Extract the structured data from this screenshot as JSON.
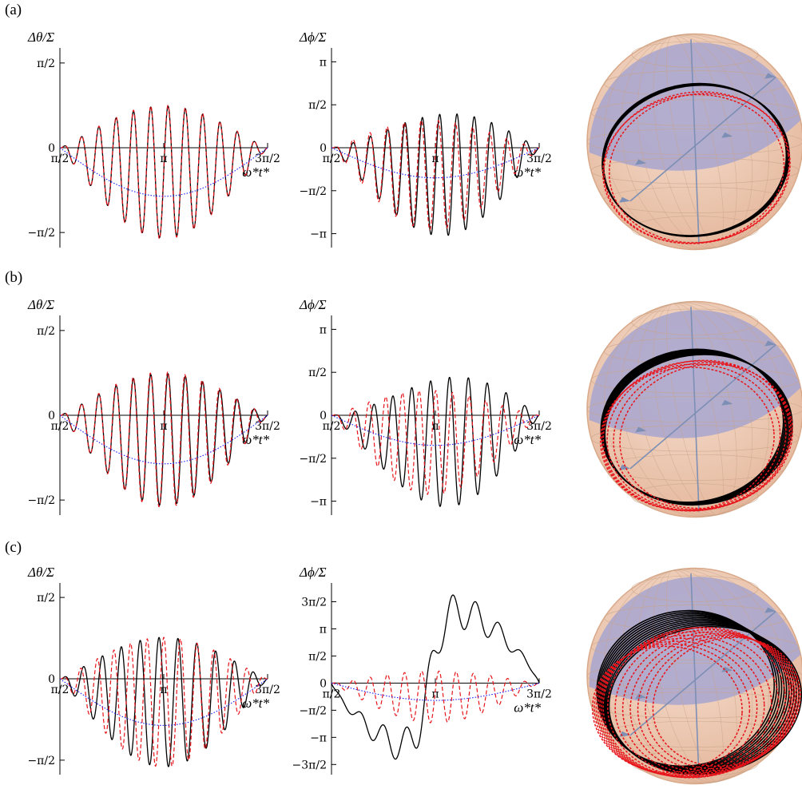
{
  "rows": [
    {
      "label": "(a)"
    },
    {
      "label": "(b)"
    },
    {
      "label": "(c)"
    }
  ],
  "axis_titles": {
    "theta": "Δθ/Σ",
    "phi": "Δϕ/Σ",
    "x": "ω*t*"
  },
  "x_ticks": [
    "π/2",
    "π",
    "3π/2"
  ],
  "colors": {
    "solid": "#000000",
    "dashed": "#e8141b",
    "envelope": "#1a1aff",
    "sphere_shell": "#e4b69a",
    "sphere_cap": "#a7a4cf",
    "sphere_grid": "#c9a487",
    "sphere_axis": "#7d8fb5"
  },
  "chart_data": [
    {
      "type": "line",
      "row": "(a)",
      "panel": "theta",
      "ylabel": "Δθ/Σ",
      "xlabel": "ω*t*",
      "xlim": [
        1.5708,
        4.7124
      ],
      "ylim": [
        -1.85,
        1.85
      ],
      "x_ticks": [
        "π/2",
        "π",
        "3π/2"
      ],
      "y_ticks": [
        {
          "label": "π/2",
          "value": 1.5708
        },
        {
          "label": "0",
          "value": 0
        },
        {
          "label": "−π/2",
          "value": -1.5708
        }
      ],
      "series": [
        {
          "style": "solid",
          "form": "osc",
          "cycles": 12,
          "amplitude": 1.22,
          "offset_amplitude": -0.45,
          "phase_drift": 0
        },
        {
          "style": "dashed",
          "form": "osc",
          "cycles": 12,
          "amplitude": 1.24,
          "offset_amplitude": -0.45,
          "phase_drift": 0.05
        },
        {
          "style": "dotted",
          "form": "envelope",
          "minimum": -0.9
        }
      ]
    },
    {
      "type": "line",
      "row": "(a)",
      "panel": "phi",
      "ylabel": "Δϕ/Σ",
      "xlabel": "ω*t*",
      "xlim": [
        1.5708,
        4.7124
      ],
      "ylim": [
        -3.65,
        3.65
      ],
      "x_ticks": [
        "π/2",
        "π",
        "3π/2"
      ],
      "y_ticks": [
        {
          "label": "π",
          "value": 3.1416
        },
        {
          "label": "π/2",
          "value": 1.5708
        },
        {
          "label": "0",
          "value": 0
        },
        {
          "label": "−π/2",
          "value": -1.5708
        },
        {
          "label": "−π",
          "value": -3.1416
        }
      ],
      "series": [
        {
          "style": "solid",
          "form": "osc",
          "cycles": 12,
          "amplitude": 2.2,
          "offset_amplitude": -1.0,
          "phase_drift": 0,
          "growth": 0.5
        },
        {
          "style": "dashed",
          "form": "osc",
          "cycles": 12,
          "amplitude": 2.0,
          "offset_amplitude": -1.0,
          "phase_drift": 0.9,
          "growth": -0.2
        },
        {
          "style": "dotted",
          "form": "envelope",
          "minimum": -1.1
        }
      ]
    },
    {
      "type": "line",
      "row": "(b)",
      "panel": "theta",
      "ylabel": "Δθ/Σ",
      "xlabel": "ω*t*",
      "xlim": [
        1.5708,
        4.7124
      ],
      "ylim": [
        -1.85,
        1.85
      ],
      "x_ticks": [
        "π/2",
        "π",
        "3π/2"
      ],
      "y_ticks": [
        {
          "label": "π/2",
          "value": 1.5708
        },
        {
          "label": "0",
          "value": 0
        },
        {
          "label": "−π/2",
          "value": -1.5708
        }
      ],
      "series": [
        {
          "style": "solid",
          "form": "osc",
          "cycles": 12,
          "amplitude": 1.22,
          "offset_amplitude": -0.45,
          "phase_drift": 0
        },
        {
          "style": "dashed",
          "form": "osc",
          "cycles": 12,
          "amplitude": 1.25,
          "offset_amplitude": -0.45,
          "phase_drift": 0.3
        },
        {
          "style": "dotted",
          "form": "envelope",
          "minimum": -0.9
        }
      ]
    },
    {
      "type": "line",
      "row": "(b)",
      "panel": "phi",
      "ylabel": "Δϕ/Σ",
      "xlabel": "ω*t*",
      "xlim": [
        1.5708,
        4.7124
      ],
      "ylim": [
        -3.65,
        3.65
      ],
      "x_ticks": [
        "π/2",
        "π",
        "3π/2"
      ],
      "y_ticks": [
        {
          "label": "π",
          "value": 3.1416
        },
        {
          "label": "π/2",
          "value": 1.5708
        },
        {
          "label": "0",
          "value": 0
        },
        {
          "label": "−π/2",
          "value": -1.5708
        },
        {
          "label": "−π",
          "value": -3.1416
        }
      ],
      "series": [
        {
          "style": "solid",
          "form": "osc",
          "cycles": 11,
          "amplitude": 2.3,
          "offset_amplitude": -1.0,
          "phase_drift": 0,
          "growth": 0.8
        },
        {
          "style": "dashed",
          "form": "osc",
          "cycles": 12,
          "amplitude": 1.9,
          "offset_amplitude": -1.0,
          "phase_drift": 2.8,
          "growth": -0.2
        },
        {
          "style": "dotted",
          "form": "envelope",
          "minimum": -1.1
        }
      ]
    },
    {
      "type": "line",
      "row": "(c)",
      "panel": "theta",
      "ylabel": "Δθ/Σ",
      "xlabel": "ω*t*",
      "xlim": [
        1.5708,
        4.7124
      ],
      "ylim": [
        -1.85,
        1.85
      ],
      "x_ticks": [
        "π/2",
        "π",
        "3π/2"
      ],
      "y_ticks": [
        {
          "label": "π/2",
          "value": 1.5708
        },
        {
          "label": "0",
          "value": 0
        },
        {
          "label": "−π/2",
          "value": -1.5708
        }
      ],
      "series": [
        {
          "style": "solid",
          "form": "osc",
          "cycles": 11,
          "amplitude": 1.25,
          "offset_amplitude": -0.45,
          "phase_drift": 0
        },
        {
          "style": "dashed",
          "form": "osc",
          "cycles": 12,
          "amplitude": 1.25,
          "offset_amplitude": -0.45,
          "phase_drift": 3.1
        },
        {
          "style": "dotted",
          "form": "envelope",
          "minimum": -0.9
        }
      ]
    },
    {
      "type": "line",
      "row": "(c)",
      "panel": "phi",
      "ylabel": "Δϕ/Σ",
      "xlabel": "ω*t*",
      "xlim": [
        1.5708,
        4.7124
      ],
      "ylim": [
        -5.3,
        5.8
      ],
      "x_ticks": [
        "π/2",
        "π",
        "3π/2"
      ],
      "y_ticks": [
        {
          "label": "3π/2",
          "value": 4.7124
        },
        {
          "label": "π",
          "value": 3.1416
        },
        {
          "label": "π/2",
          "value": 1.5708
        },
        {
          "label": "0",
          "value": 0
        },
        {
          "label": "−π/2",
          "value": -1.5708
        },
        {
          "label": "−π",
          "value": -3.1416
        },
        {
          "label": "−3π/2",
          "value": -4.7124
        }
      ],
      "series": [
        {
          "style": "solid",
          "form": "drift",
          "cycles": 9,
          "amplitude": 1.1,
          "drift_low": -4.2,
          "drift_high": 4.5,
          "switch": 3.05
        },
        {
          "style": "dashed",
          "form": "osc",
          "cycles": 12,
          "amplitude": 1.5,
          "offset_amplitude": -0.8,
          "phase_drift": 0.5
        },
        {
          "style": "dotted",
          "form": "envelope",
          "minimum": -1.0
        }
      ]
    }
  ],
  "spheres": [
    {
      "row": "(a)",
      "type": "sphere-trajectory",
      "red_rings": 3,
      "black_rings": 4,
      "spread": 0.06
    },
    {
      "row": "(b)",
      "type": "sphere-trajectory",
      "red_rings": 6,
      "black_rings": 8,
      "spread": 0.18
    },
    {
      "row": "(c)",
      "type": "sphere-trajectory",
      "red_rings": 14,
      "black_rings": 12,
      "spread": 0.55
    }
  ]
}
